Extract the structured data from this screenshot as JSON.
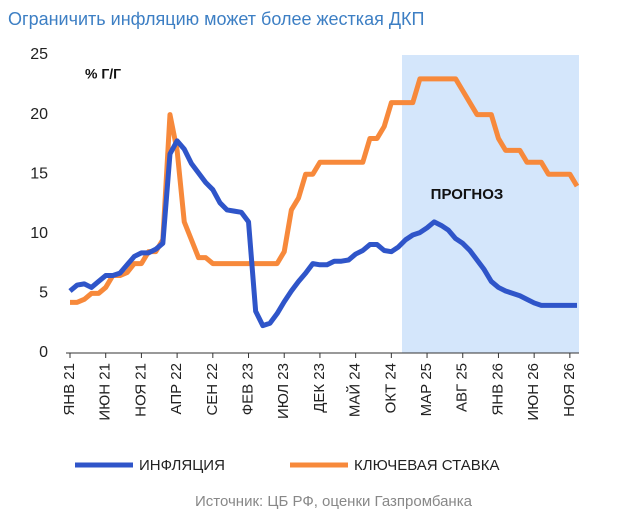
{
  "chart_data": {
    "type": "line",
    "title": "Ограничить инфляцию может более жесткая ДКП",
    "y_label": "% Г/Г",
    "annotation": "ПРОГНОЗ",
    "source": "Источник: ЦБ РФ, оценки Газпромбанка",
    "categories": [
      "ЯНВ 21",
      null,
      null,
      null,
      null,
      "ИЮН 21",
      null,
      null,
      null,
      null,
      "НОЯ 21",
      null,
      null,
      null,
      null,
      "АПР 22",
      null,
      null,
      null,
      null,
      "СЕН 22",
      null,
      null,
      null,
      null,
      "ФЕВ 23",
      null,
      null,
      null,
      null,
      "ИЮЛ 23",
      null,
      null,
      null,
      null,
      "ДЕК 23",
      null,
      null,
      null,
      null,
      "МАЙ 24",
      null,
      null,
      null,
      null,
      "ОКТ 24",
      null,
      null,
      null,
      null,
      "МАР 25",
      null,
      null,
      null,
      null,
      "АВГ 25",
      null,
      null,
      null,
      null,
      "ЯНВ 26",
      null,
      null,
      null,
      null,
      "ИЮН 26",
      null,
      null,
      null,
      null,
      "НОЯ 26",
      null
    ],
    "series": [
      {
        "name": "ИНФЛЯЦИЯ",
        "color": "#2f55c9",
        "values": [
          5.2,
          5.7,
          5.8,
          5.5,
          6.0,
          6.5,
          6.5,
          6.7,
          7.4,
          8.1,
          8.4,
          8.4,
          8.7,
          9.2,
          16.7,
          17.8,
          17.1,
          15.9,
          15.1,
          14.3,
          13.7,
          12.6,
          12.0,
          11.9,
          11.8,
          11.0,
          3.5,
          2.3,
          2.5,
          3.3,
          4.3,
          5.2,
          6.0,
          6.7,
          7.5,
          7.4,
          7.4,
          7.7,
          7.7,
          7.8,
          8.3,
          8.6,
          9.1,
          9.1,
          8.6,
          8.5,
          8.9,
          9.5,
          9.9,
          10.1,
          10.5,
          11.0,
          10.7,
          10.3,
          9.6,
          9.2,
          8.6,
          7.8,
          7.0,
          6.0,
          5.5,
          5.2,
          5.0,
          4.8,
          4.5,
          4.2,
          4.0,
          4.0,
          4.0,
          4.0,
          4.0,
          4.0
        ]
      },
      {
        "name": "КЛЮЧЕВАЯ СТАВКА",
        "color": "#f7893b",
        "values": [
          4.25,
          4.25,
          4.5,
          5.0,
          5.0,
          5.5,
          6.5,
          6.5,
          6.75,
          7.5,
          7.5,
          8.5,
          8.5,
          9.5,
          20,
          17,
          11,
          9.5,
          8,
          8,
          7.5,
          7.5,
          7.5,
          7.5,
          7.5,
          7.5,
          7.5,
          7.5,
          7.5,
          7.5,
          8.5,
          12,
          13,
          15,
          15,
          16,
          16,
          16,
          16,
          16,
          16,
          16,
          18,
          18,
          19,
          21,
          21,
          21,
          21,
          23,
          23,
          23,
          23,
          23,
          23,
          22,
          21,
          20,
          20,
          20,
          18,
          17,
          17,
          17,
          16,
          16,
          16,
          15,
          15,
          15,
          15,
          14
        ]
      }
    ],
    "ylim": [
      0,
      25
    ],
    "yticks": [
      0,
      5,
      10,
      15,
      20,
      25
    ]
  }
}
